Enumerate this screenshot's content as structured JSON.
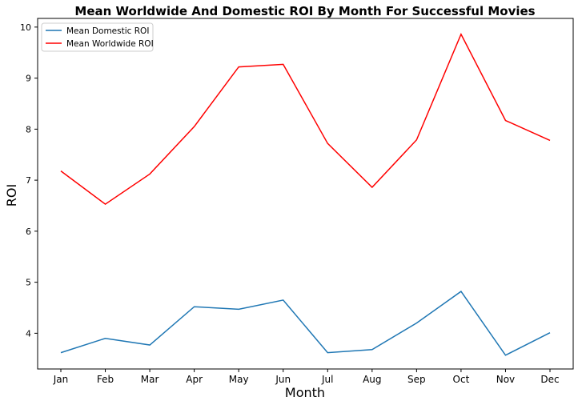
{
  "chart_data": {
    "type": "line",
    "title": "Mean Worldwide And Domestic ROI By Month For Successful Movies",
    "xlabel": "Month",
    "ylabel": "ROI",
    "categories": [
      "Jan",
      "Feb",
      "Mar",
      "Apr",
      "May",
      "Jun",
      "Jul",
      "Aug",
      "Sep",
      "Oct",
      "Nov",
      "Dec"
    ],
    "yticks": [
      4,
      5,
      6,
      7,
      8,
      9,
      10
    ],
    "ylim": [
      3.3,
      10.17
    ],
    "grid": false,
    "legend_position": "top-left",
    "series": [
      {
        "name": "Mean Domestic ROI",
        "color": "#1f77b4",
        "values": [
          3.62,
          3.9,
          3.77,
          4.52,
          4.47,
          4.65,
          3.62,
          3.68,
          4.2,
          4.82,
          3.57,
          4.01
        ]
      },
      {
        "name": "Mean Worldwide ROI",
        "color": "#ff0000",
        "values": [
          7.18,
          6.53,
          7.12,
          8.05,
          9.22,
          9.27,
          7.72,
          6.86,
          7.79,
          9.86,
          8.17,
          7.78
        ]
      }
    ]
  }
}
